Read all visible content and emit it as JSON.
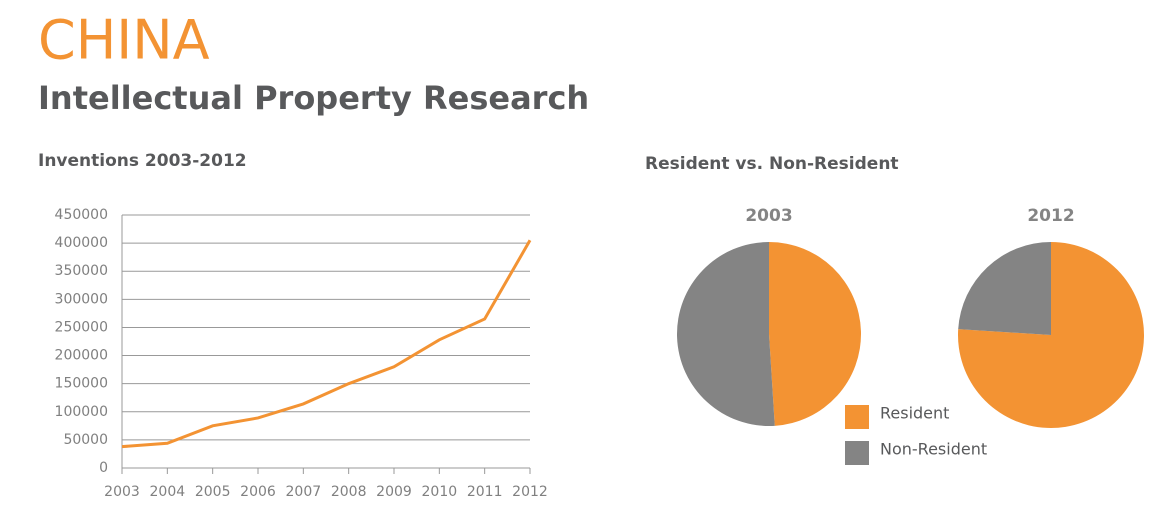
{
  "header": {
    "title": "CHINA",
    "subtitle": "Intellectual Property Research"
  },
  "pie_section_title": "Resident vs. Non-Resident",
  "chart_data": [
    {
      "type": "line",
      "title": "Inventions 2003-2012",
      "categories": [
        "2003",
        "2004",
        "2005",
        "2006",
        "2007",
        "2008",
        "2009",
        "2010",
        "2011",
        "2012"
      ],
      "values": [
        38000,
        44000,
        75000,
        89000,
        114000,
        150000,
        180000,
        228000,
        265000,
        405000
      ],
      "color": "#f39333",
      "ylim": [
        0,
        450000
      ],
      "yticks": [
        0,
        50000,
        100000,
        150000,
        200000,
        250000,
        300000,
        350000,
        400000,
        450000
      ],
      "grid": true
    },
    {
      "type": "pie",
      "title": "2003",
      "categories": [
        "Resident",
        "Non-Resident"
      ],
      "values": [
        49,
        51
      ],
      "colors": [
        "#f39333",
        "#848484"
      ]
    },
    {
      "type": "pie",
      "title": "2012",
      "categories": [
        "Resident",
        "Non-Resident"
      ],
      "values": [
        76,
        24
      ],
      "colors": [
        "#f39333",
        "#848484"
      ]
    }
  ]
}
